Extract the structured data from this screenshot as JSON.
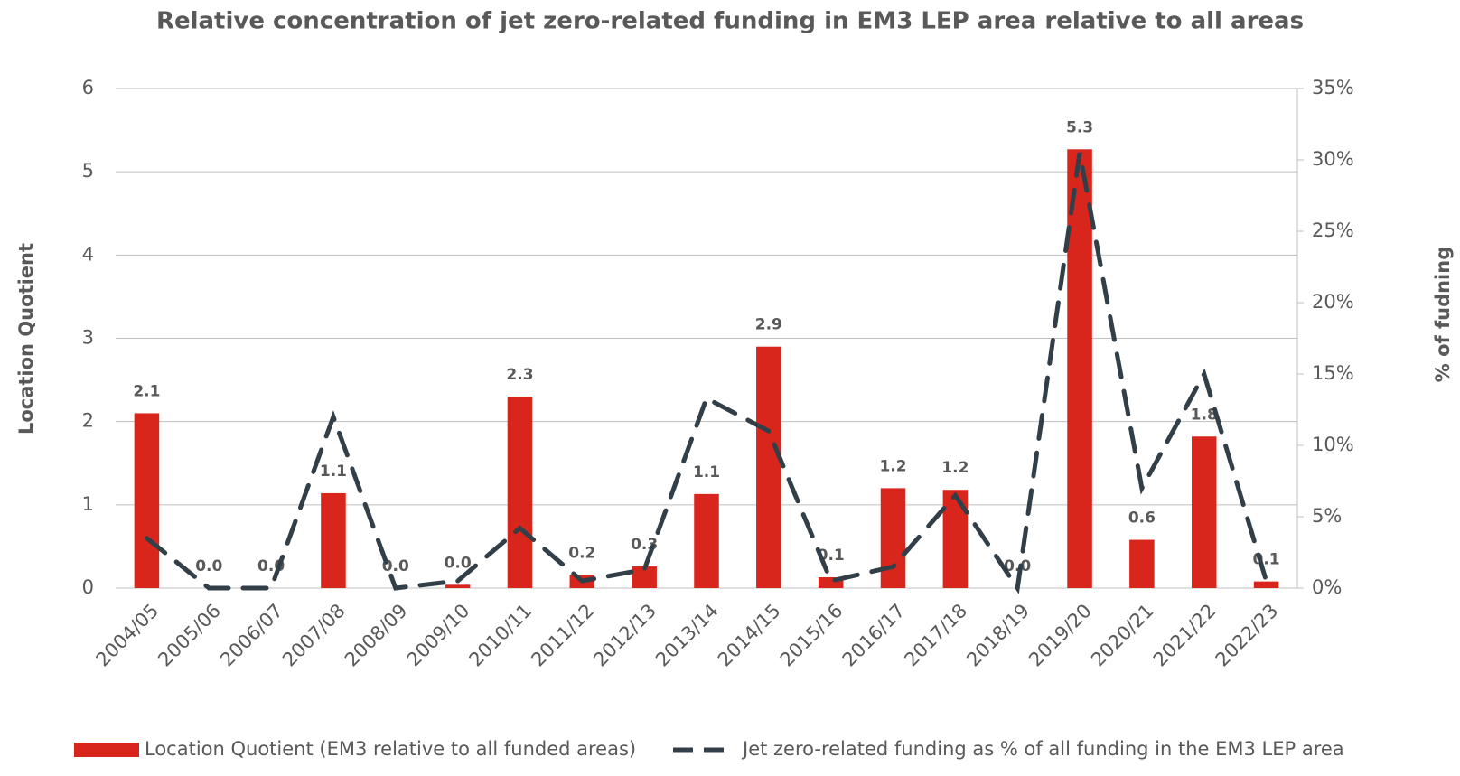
{
  "chart_data": {
    "type": "bar_line",
    "title": "Relative concentration of jet zero-related funding in EM3 LEP area relative to all areas",
    "ylabel": "Location Quotient",
    "y2label": "% of fudning",
    "categories": [
      "2004/05",
      "2005/06",
      "2006/07",
      "2007/08",
      "2008/09",
      "2009/10",
      "2010/11",
      "2011/12",
      "2012/13",
      "2013/14",
      "2014/15",
      "2015/16",
      "2016/17",
      "2017/18",
      "2018/19",
      "2019/20",
      "2020/21",
      "2021/22",
      "2022/23"
    ],
    "series": [
      {
        "name": "Location Quotient (EM3 relative to all funded areas)",
        "color": "#d9261c",
        "values": [
          2.1,
          0,
          0,
          1.14,
          0,
          0.04,
          2.3,
          0.16,
          0.26,
          1.13,
          2.9,
          0.13,
          1.2,
          1.18,
          0,
          5.27,
          0.58,
          1.82,
          0.08
        ],
        "value_labels": [
          "2.1",
          "0.0",
          "0.0",
          "1.1",
          "0.0",
          "0.0",
          "2.3",
          "0.2",
          "0.3",
          "1.1",
          "2.9",
          "0.1",
          "1.2",
          "1.2",
          "0.0",
          "5.3",
          "0.6",
          "1.8",
          "0.1"
        ]
      },
      {
        "name": "Jet zero-related funding as % of all funding in the EM3 LEP area",
        "color": "#333f48",
        "axis": "y2",
        "dashed": true,
        "values": [
          3.5,
          0,
          0,
          12,
          0,
          0.5,
          4.2,
          0.5,
          1.3,
          13.3,
          11,
          0.5,
          1.5,
          6.5,
          0,
          30.5,
          7,
          15,
          0.5
        ]
      }
    ],
    "ylim": [
      0,
      6
    ],
    "yticks": [
      0,
      1,
      2,
      3,
      4,
      5,
      6
    ],
    "y2lim": [
      0,
      35
    ],
    "y2ticks": [
      {
        "value": 0,
        "label": "0%"
      },
      {
        "value": 5,
        "label": "5%"
      },
      {
        "value": 10,
        "label": "10%"
      },
      {
        "value": 15,
        "label": "15%"
      },
      {
        "value": 20,
        "label": "20%"
      },
      {
        "value": 25,
        "label": "25%"
      },
      {
        "value": 30,
        "label": "30%"
      },
      {
        "value": 35,
        "label": "35%"
      }
    ],
    "grid": true,
    "legend": "bottom"
  }
}
